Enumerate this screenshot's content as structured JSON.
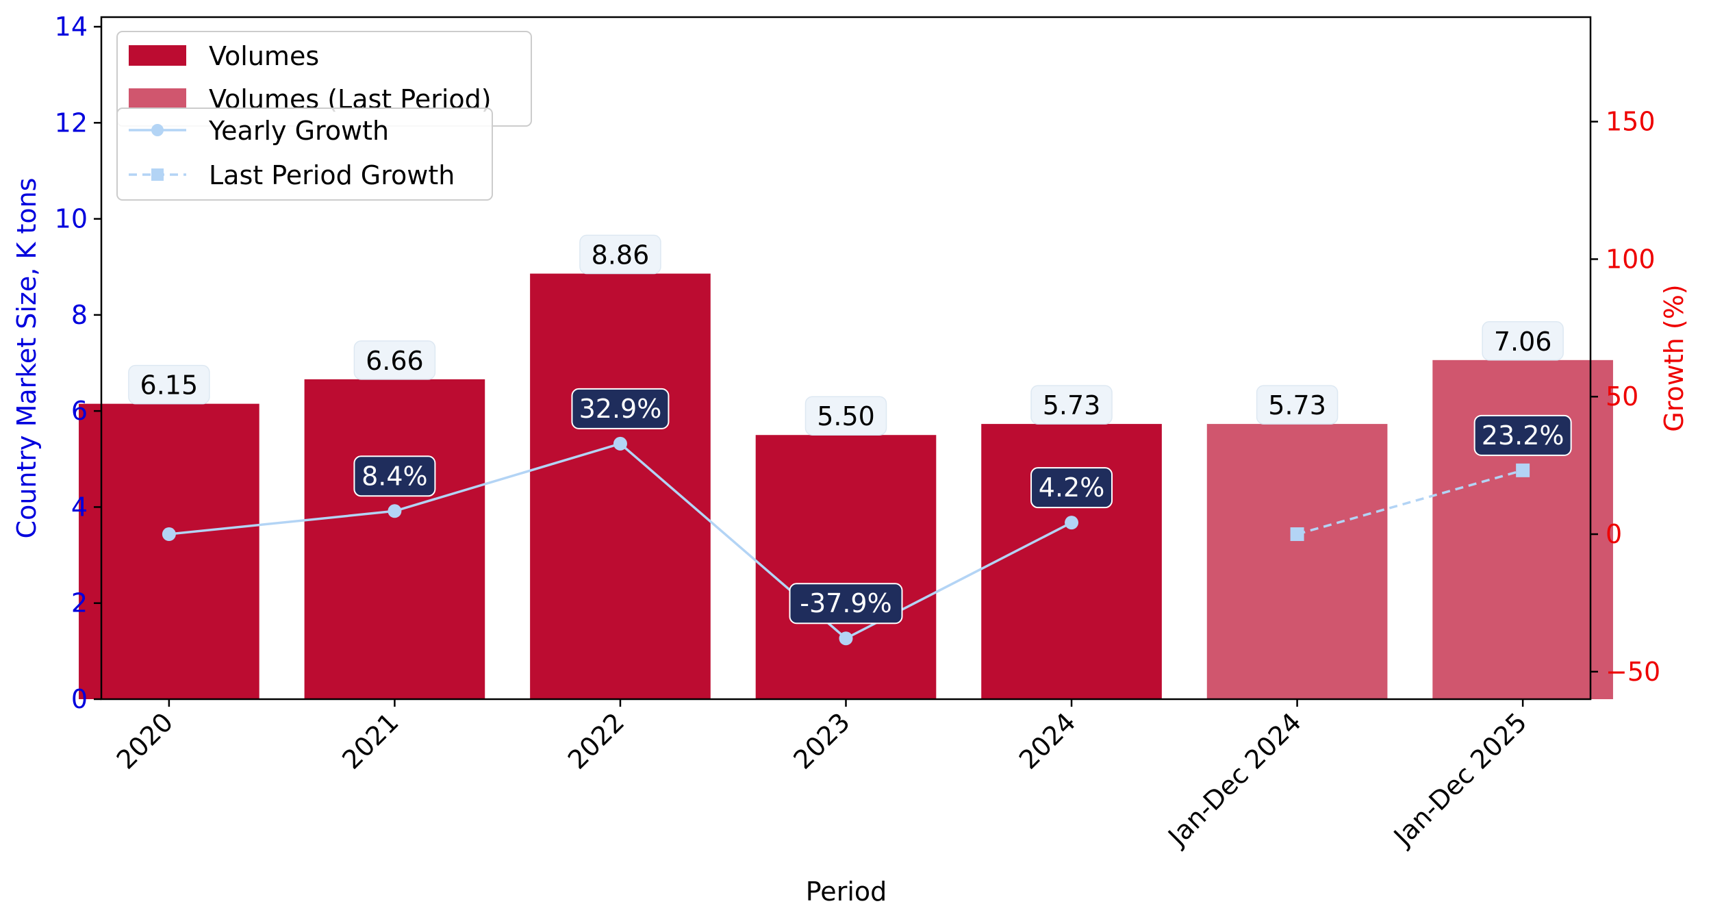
{
  "chart_data": {
    "type": "bar",
    "xlabel": "Period",
    "ylabel_left": "Country Market Size, K tons",
    "ylabel_right": "Growth (%)",
    "categories": [
      "2020",
      "2021",
      "2022",
      "2023",
      "2024",
      "Jan-Dec 2024",
      "Jan-Dec 2025"
    ],
    "left_axis": {
      "ylim": [
        0,
        14.2
      ],
      "ticks": [
        0,
        2,
        4,
        6,
        8,
        10,
        12,
        14
      ],
      "color": "#0000dd"
    },
    "right_axis": {
      "ylim": [
        -60,
        188
      ],
      "ticks": [
        -50,
        0,
        50,
        100,
        150
      ],
      "color": "#ee0000"
    },
    "bars": [
      {
        "category": "2020",
        "value": 6.15,
        "label": "6.15",
        "kind": "volumes"
      },
      {
        "category": "2021",
        "value": 6.66,
        "label": "6.66",
        "kind": "volumes"
      },
      {
        "category": "2022",
        "value": 8.86,
        "label": "8.86",
        "kind": "volumes"
      },
      {
        "category": "2023",
        "value": 5.5,
        "label": "5.50",
        "kind": "volumes"
      },
      {
        "category": "2024",
        "value": 5.73,
        "label": "5.73",
        "kind": "volumes"
      },
      {
        "category": "Jan-Dec 2024",
        "value": 5.73,
        "label": "5.73",
        "kind": "last"
      },
      {
        "category": "Jan-Dec 2025",
        "value": 7.06,
        "label": "7.06",
        "kind": "last"
      }
    ],
    "series": [
      {
        "name": "Yearly Growth",
        "style": "solid-circle",
        "color": "#b3d4f5",
        "points": [
          {
            "category": "2020",
            "value": 0,
            "label": ""
          },
          {
            "category": "2021",
            "value": 8.4,
            "label": "8.4%"
          },
          {
            "category": "2022",
            "value": 32.9,
            "label": "32.9%"
          },
          {
            "category": "2023",
            "value": -37.9,
            "label": "-37.9%"
          },
          {
            "category": "2024",
            "value": 4.2,
            "label": "4.2%"
          }
        ]
      },
      {
        "name": "Last Period Growth",
        "style": "dashed-square",
        "color": "#b3d4f5",
        "points": [
          {
            "category": "Jan-Dec 2024",
            "value": 0,
            "label": ""
          },
          {
            "category": "Jan-Dec 2025",
            "value": 23.2,
            "label": "23.2%"
          }
        ]
      }
    ],
    "legend": {
      "bars": [
        {
          "name": "Volumes",
          "color": "#bc0c31"
        },
        {
          "name": "Volumes (Last Period)",
          "color": "#d0566e"
        }
      ],
      "lines": [
        {
          "name": "Yearly Growth",
          "style": "solid-circle"
        },
        {
          "name": "Last Period Growth",
          "style": "dashed-square"
        }
      ],
      "placement": "top-left"
    },
    "colors": {
      "volumes": "#bc0c31",
      "last": "#d0566e",
      "growth_label_bg": "#1f2d5c",
      "bar_label_bg": "#eef4fa"
    }
  }
}
